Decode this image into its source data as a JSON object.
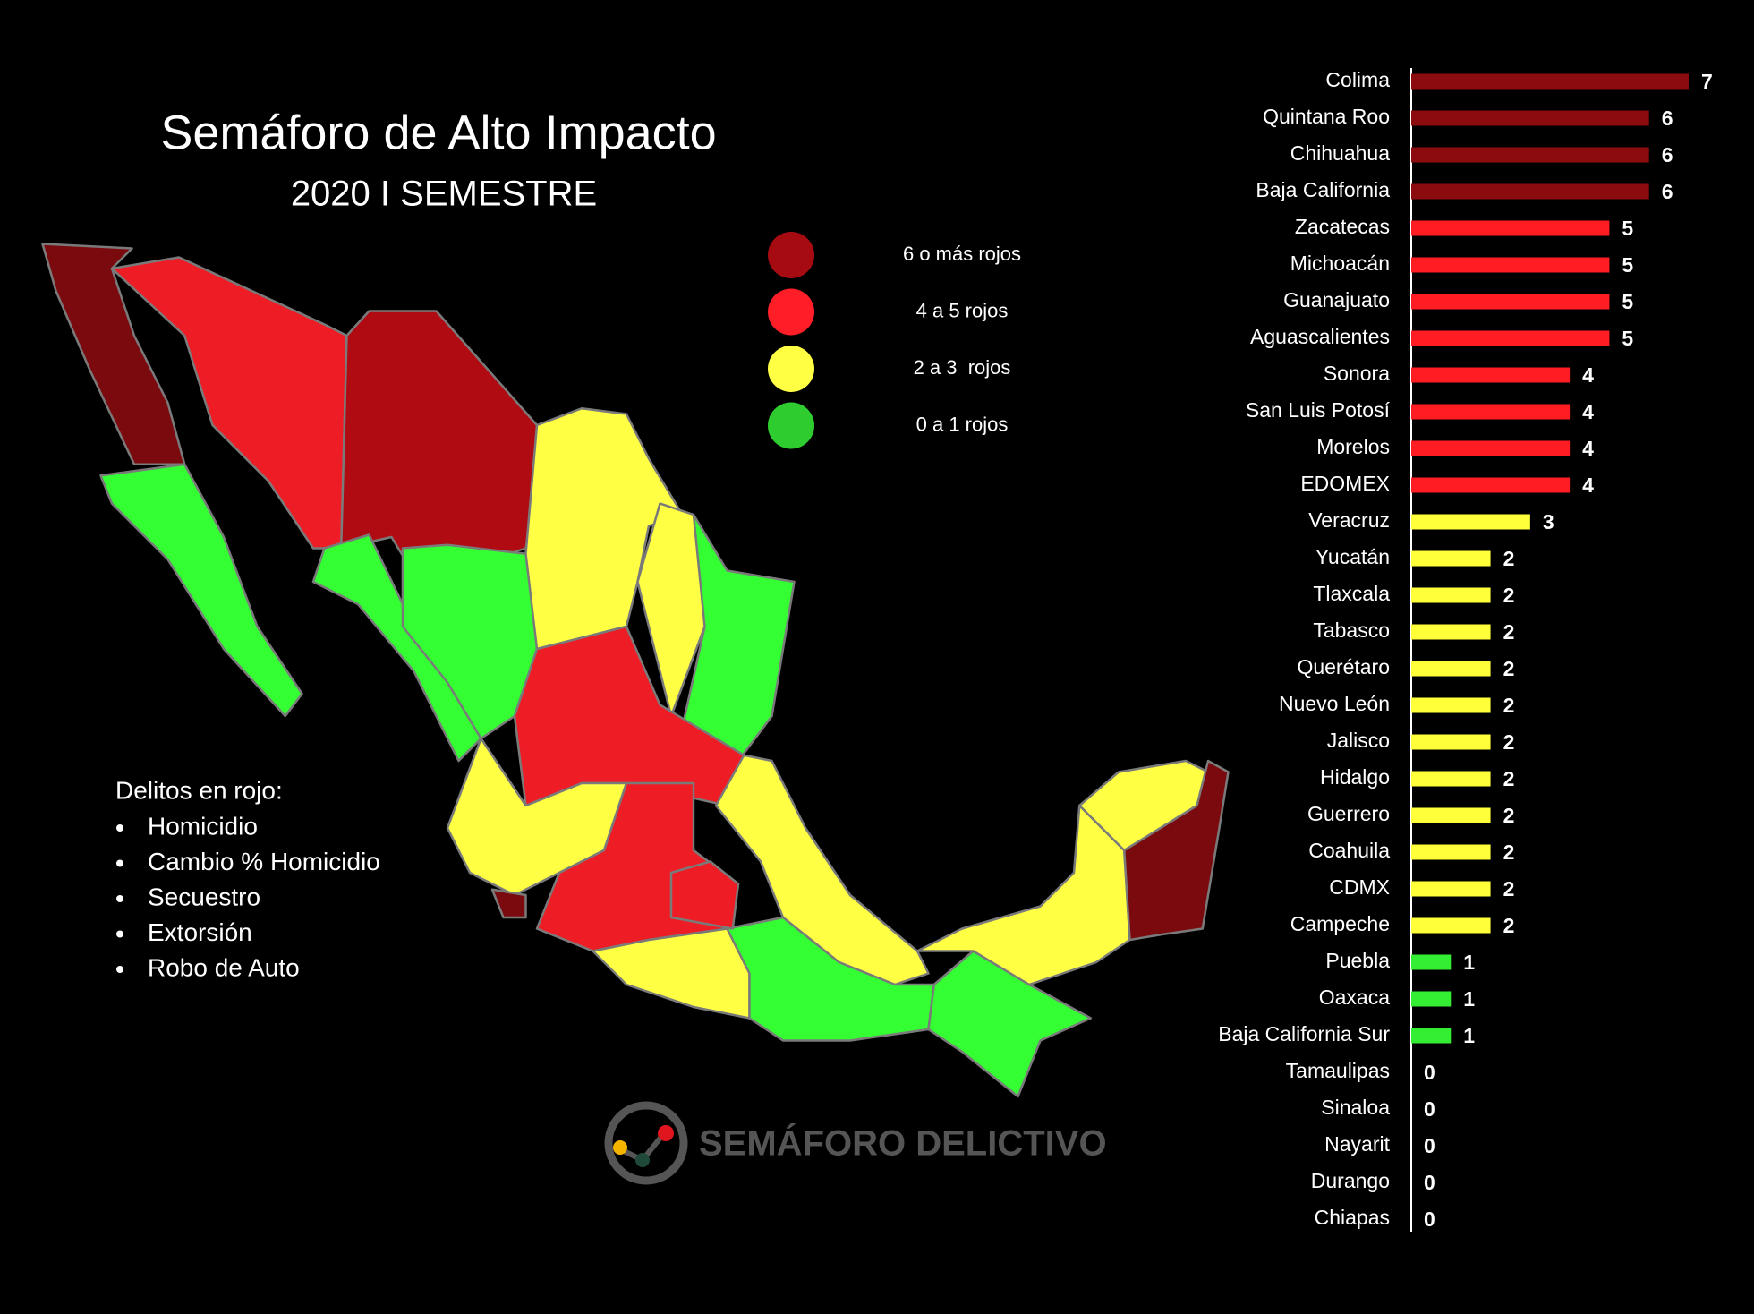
{
  "chart_data": {
    "type": "bar",
    "orientation": "horizontal",
    "categories": [
      "Colima",
      "Quintana Roo",
      "Chihuahua",
      "Baja California",
      "Zacatecas",
      "Michoacán",
      "Guanajuato",
      "Aguascalientes",
      "Sonora",
      "San Luis Potosí",
      "Morelos",
      "EDOMEX",
      "Veracruz",
      "Yucatán",
      "Tlaxcala",
      "Tabasco",
      "Querétaro",
      "Nuevo León",
      "Jalisco",
      "Hidalgo",
      "Guerrero",
      "Coahuila",
      "CDMX",
      "Campeche",
      "Puebla",
      "Oaxaca",
      "Baja California Sur",
      "Tamaulipas",
      "Sinaloa",
      "Nayarit",
      "Durango",
      "Chiapas"
    ],
    "values": [
      7,
      6,
      6,
      6,
      5,
      5,
      5,
      5,
      4,
      4,
      4,
      4,
      3,
      2,
      2,
      2,
      2,
      2,
      2,
      2,
      2,
      2,
      2,
      2,
      1,
      1,
      1,
      0,
      0,
      0,
      0,
      0
    ],
    "colors": [
      "#8b0b0e",
      "#8b0b0e",
      "#8b0b0e",
      "#8b0b0e",
      "#ff1c23",
      "#ff1c23",
      "#ff1c23",
      "#ff1c23",
      "#ff1c23",
      "#ff1c23",
      "#ff1c23",
      "#ff1c23",
      "#ffff3a",
      "#ffff3a",
      "#ffff3a",
      "#ffff3a",
      "#ffff3a",
      "#ffff3a",
      "#ffff3a",
      "#ffff3a",
      "#ffff3a",
      "#ffff3a",
      "#ffff3a",
      "#ffff3a",
      "#33ee33",
      "#33ee33",
      "#33ee33",
      "#33ee33",
      "#33ee33",
      "#33ee33",
      "#33ee33",
      "#33ee33"
    ]
  },
  "map": {
    "title": "Semáforo de Alto Impacto",
    "subtitle": "2020 I SEMESTRE",
    "legend": [
      {
        "label": "6 o más rojos",
        "color": "#a60b12"
      },
      {
        "label": "4 a 5 rojos",
        "color": "#ff1e27"
      },
      {
        "label": "2 a 3  rojos",
        "color": "#ffff44"
      },
      {
        "label": "0 a 1 rojos",
        "color": "#2ecc2e"
      }
    ],
    "notes": {
      "heading": "Delitos en rojo:",
      "items": [
        "Homicidio",
        "Cambio % Homicidio",
        "Secuestro",
        "Extorsión",
        "Robo de Auto"
      ]
    },
    "logo": "SEMÁFORO DELICTIVO"
  }
}
